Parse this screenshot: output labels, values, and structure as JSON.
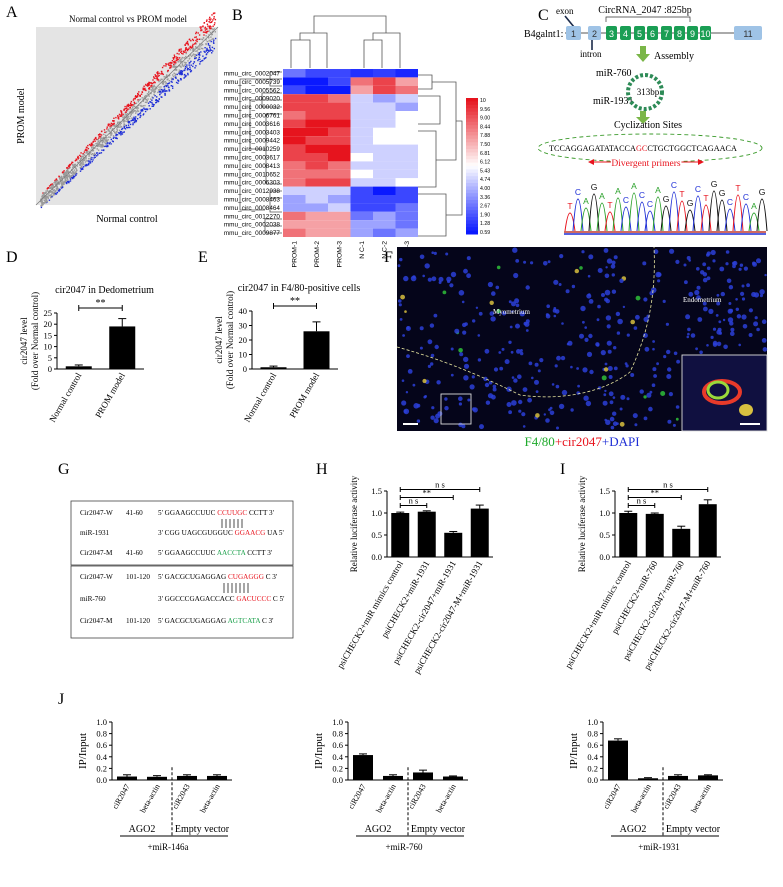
{
  "panel_letters": [
    "A",
    "B",
    "C",
    "D",
    "E",
    "F",
    "G",
    "H",
    "I",
    "J"
  ],
  "colors": {
    "up": "#e8141e",
    "down": "#1f2fd6",
    "ns": "#9a9a9a",
    "exon_green": "#1a9e54",
    "exon_blue": "#9fc3e6",
    "arrow_green": "#7ab648",
    "bar": "#000000"
  },
  "panelA": {
    "title": "Normal control vs PROM model",
    "xlabel": "Normal control",
    "ylabel": "PROM model"
  },
  "panelB": {
    "rows": [
      "mmu_circ_0002047",
      "mmu_circ_0005739",
      "mmu_circ_0005562",
      "mmu_circ_0009020",
      "mmu_circ_0000032",
      "mmu_circ_0006761",
      "mmu_circ_0003616",
      "mmu_circ_0003403",
      "mmu_circ_0009442",
      "mmu_circ_0010259",
      "mmu_circ_0003617",
      "mmu_circ_0008413",
      "mmu_circ_0010652",
      "mmu_circ_0006303",
      "mmu_circ_0012938",
      "mmu_circ_0008463",
      "mmu_circ_0008464",
      "mmu_circ_0012270",
      "mmu_circ_0002038",
      "mmu_circ_0009877"
    ],
    "cols": [
      "PROM-1",
      "PROM-2",
      "PROM-3",
      "N C-1",
      "N C-2",
      "N C-3"
    ],
    "scale": [
      "10",
      "9.56",
      "9.00",
      "8.44",
      "7.88",
      "7.50",
      "6.81",
      "6.12",
      "5.43",
      "4.74",
      "4.00",
      "3.36",
      "2.67",
      "1.90",
      "1.28",
      "0.59"
    ],
    "values": [
      [
        2,
        1,
        1,
        0.5,
        0.8,
        0.3
      ],
      [
        0,
        0,
        1,
        8,
        9,
        7
      ],
      [
        1,
        0,
        0,
        7,
        9,
        8
      ],
      [
        9,
        9,
        8,
        4,
        3,
        4
      ],
      [
        9,
        9,
        9,
        4,
        4,
        3
      ],
      [
        8,
        9,
        9,
        4,
        4,
        5
      ],
      [
        9,
        10,
        10,
        4,
        4,
        5
      ],
      [
        10,
        10,
        9,
        4,
        5,
        5
      ],
      [
        10,
        9,
        9,
        4,
        5,
        5
      ],
      [
        9,
        10,
        10,
        4,
        4,
        4
      ],
      [
        9,
        9,
        10,
        5,
        4,
        4
      ],
      [
        8,
        9,
        8,
        4,
        4,
        4
      ],
      [
        8,
        8,
        8,
        5,
        4,
        4
      ],
      [
        8,
        9,
        9,
        4,
        4,
        5
      ],
      [
        4,
        4,
        4,
        1,
        0,
        1
      ],
      [
        3,
        4,
        3,
        1,
        1,
        1
      ],
      [
        3,
        3,
        4,
        1,
        1,
        2
      ],
      [
        8,
        7,
        7,
        2,
        3,
        2
      ],
      [
        7,
        7,
        7,
        3,
        3,
        2
      ],
      [
        8,
        7,
        7,
        3,
        2,
        3
      ]
    ]
  },
  "panelC": {
    "gene": "B4galnt1:",
    "circ_title": "CircRNA_2047 :825bp",
    "exon_label": "exon",
    "intron_label": "intron",
    "exons": [
      "1",
      "2",
      "3",
      "4",
      "5",
      "6",
      "7",
      "8",
      "9",
      "10",
      "11"
    ],
    "assembly": "Assembly",
    "mir1": "miR-760",
    "mir2": "miR-1931",
    "circle_size": "313bp",
    "cyclization": "Cyclization Sites",
    "seq_left": "TCCAGGAGATATACCA",
    "seq_mid": "GC",
    "seq_right": "CTGCTGGCTCAGAACA",
    "primers": "Divergent primers",
    "chromatogram": "TCAGATACACCAGCTGCTGGCTCAG"
  },
  "chart_data": [
    {
      "panel": "D",
      "type": "bar",
      "title": "cir2047 in Dedometrium",
      "ylabel": "cir2047 level",
      "ylabel2": "(Fold over Normal control)",
      "categories": [
        "Normal control",
        "PROM model"
      ],
      "values": [
        1.2,
        19
      ],
      "errors": [
        0.6,
        3.5
      ],
      "ylim": [
        0,
        25
      ],
      "yticks": [
        "0",
        "5",
        "10",
        "15",
        "20",
        "25"
      ],
      "sig": "**"
    },
    {
      "panel": "E",
      "type": "bar",
      "title": "cir2047  in F4/80-positive cells",
      "ylabel": "cir2047 level",
      "ylabel2": "(Fold over Normal control)",
      "categories": [
        "Normal control",
        "PROM model"
      ],
      "values": [
        1.2,
        26
      ],
      "errors": [
        0.8,
        6.5
      ],
      "ylim": [
        0,
        40
      ],
      "yticks": [
        "0",
        "10",
        "20",
        "30",
        "40"
      ],
      "sig": "**"
    },
    {
      "panel": "H",
      "type": "bar",
      "ylabel": "Relative luciferase activity",
      "categories": [
        "psiCHECK2+miR mimics control",
        "psiCHECK2+miR-1931",
        "psiCHECK2-cir2047+miR-1931",
        "psiCHECK2-cir2047-M+miR-1931"
      ],
      "values": [
        1.0,
        1.03,
        0.55,
        1.1
      ],
      "errors": [
        0.02,
        0.02,
        0.03,
        0.08
      ],
      "ylim": [
        0,
        1.5
      ],
      "yticks": [
        "0.0",
        "0.5",
        "1.0",
        "1.5"
      ],
      "sig": [
        {
          "a": 0,
          "b": 1,
          "t": "n s"
        },
        {
          "a": 0,
          "b": 2,
          "t": "**"
        },
        {
          "a": 0,
          "b": 3,
          "t": "n s"
        }
      ]
    },
    {
      "panel": "I",
      "type": "bar",
      "ylabel": "Relative luciferase activity",
      "categories": [
        "psiCHECK2+miR mimics control",
        "psiCHECK2+miR-760",
        "psiCHECK2-cir2047+miR-760",
        "psiCHECK2-cir2047-M+miR-760"
      ],
      "values": [
        1.0,
        0.98,
        0.64,
        1.2
      ],
      "errors": [
        0.04,
        0.02,
        0.06,
        0.1
      ],
      "ylim": [
        0,
        1.5
      ],
      "yticks": [
        "0.0",
        "0.5",
        "1.0",
        "1.5"
      ],
      "sig": [
        {
          "a": 0,
          "b": 1,
          "t": "n s"
        },
        {
          "a": 0,
          "b": 2,
          "t": "**"
        },
        {
          "a": 0,
          "b": 3,
          "t": "n s"
        }
      ]
    },
    {
      "panel": "J1",
      "type": "bar",
      "ylabel": "IP/Input",
      "categories": [
        "ciR2047",
        "beta-actin",
        "ciR2043",
        "beta-actin"
      ],
      "values": [
        0.06,
        0.055,
        0.07,
        0.07
      ],
      "errors": [
        0.03,
        0.02,
        0.02,
        0.02
      ],
      "ylim": [
        0,
        1.0
      ],
      "yticks": [
        "0.0",
        "0.2",
        "0.4",
        "0.6",
        "0.8",
        "1.0"
      ],
      "groups": [
        "AGO2",
        "Empty vector"
      ],
      "footer": "+miR-146a"
    },
    {
      "panel": "J2",
      "type": "bar",
      "ylabel": "IP/Input",
      "categories": [
        "ciR2047",
        "beta-actin",
        "ciR2043",
        "beta-actin"
      ],
      "values": [
        0.43,
        0.07,
        0.13,
        0.06
      ],
      "errors": [
        0.02,
        0.02,
        0.04,
        0.01
      ],
      "ylim": [
        0,
        1.0
      ],
      "yticks": [
        "0.0",
        "0.2",
        "0.4",
        "0.6",
        "0.8",
        "1.0"
      ],
      "groups": [
        "AGO2",
        "Empty vector"
      ],
      "footer": "+miR-760"
    },
    {
      "panel": "J3",
      "type": "bar",
      "ylabel": "IP/Input",
      "categories": [
        "ciR2047",
        "beta-actin",
        "ciR2043",
        "beta-actin"
      ],
      "values": [
        0.68,
        0.03,
        0.07,
        0.08
      ],
      "errors": [
        0.03,
        0.01,
        0.02,
        0.01
      ],
      "ylim": [
        0,
        1.0
      ],
      "yticks": [
        "0.0",
        "0.2",
        "0.4",
        "0.6",
        "0.8",
        "1.0"
      ],
      "groups": [
        "AGO2",
        "Empty vector"
      ],
      "footer": "+miR-1931"
    }
  ],
  "panelF": {
    "label1": "Myometrium",
    "label2": "Endometrium",
    "legend_a": "F4/80",
    "legend_b": "+cir2047",
    "legend_c": "+DAPI"
  },
  "panelG": {
    "box1": [
      {
        "name": "Cir2047-W",
        "pos": "41-60",
        "pre": "5' GGAAGCCUUC",
        "hl": "CCUUGC",
        "post": "CCTT  3'",
        "hc": "red"
      },
      {
        "name": "miR-1931",
        "pos": "",
        "pre": "3' CGG UAGCGUGGUC",
        "hl": "GGAACG",
        "post": "UA  5'",
        "hc": "red"
      },
      {
        "name": "Cir2047-M",
        "pos": "41-60",
        "pre": "5' GGAAGCCUUC",
        "hl": "AACCTA",
        "post": "CCTT  3'",
        "hc": "green"
      }
    ],
    "box2": [
      {
        "name": "Cir2047-W",
        "pos": "101-120",
        "pre": "5' GACGCUGAGGAG",
        "hl": "CUGAGGG",
        "post": "C  3'",
        "hc": "red"
      },
      {
        "name": "miR-760",
        "pos": "",
        "pre": "3' GGCCCGAGACCACC",
        "hl": "GACUCCC",
        "post": "C  5'",
        "hc": "red"
      },
      {
        "name": "Cir2047-M",
        "pos": "101-120",
        "pre": "5' GACGCUGAGGAG",
        "hl": "AGTCATA",
        "post": "C  3'",
        "hc": "green"
      }
    ]
  }
}
